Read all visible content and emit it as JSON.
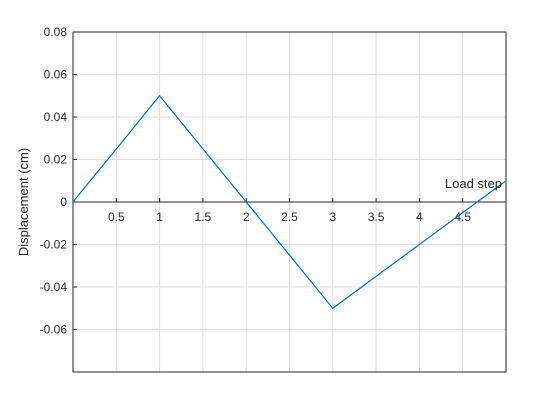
{
  "chart_data": {
    "type": "line",
    "xlabel": "Load step",
    "ylabel": "Displacement (cm)",
    "xlim": [
      0,
      5
    ],
    "ylim": [
      -0.08,
      0.08
    ],
    "x_ticks": [
      0.5,
      1,
      1.5,
      2,
      2.5,
      3,
      3.5,
      4,
      4.5
    ],
    "x_tick_labels": [
      "0.5",
      "1",
      "1.5",
      "2",
      "2.5",
      "3",
      "3.5",
      "4",
      "4.5"
    ],
    "y_ticks": [
      0.08,
      0.06,
      0.04,
      0.02,
      0,
      -0.02,
      -0.04,
      -0.06
    ],
    "y_tick_labels": [
      "0.08",
      "0.06",
      "0.04",
      "0.02",
      "0",
      "-0.02",
      "-0.04",
      "-0.06"
    ],
    "grid": true,
    "series": [
      {
        "x": [
          0,
          1,
          2,
          3,
          5
        ],
        "y": [
          0,
          0.05,
          0,
          -0.05,
          0.01
        ],
        "color": "#0072BD"
      }
    ]
  }
}
